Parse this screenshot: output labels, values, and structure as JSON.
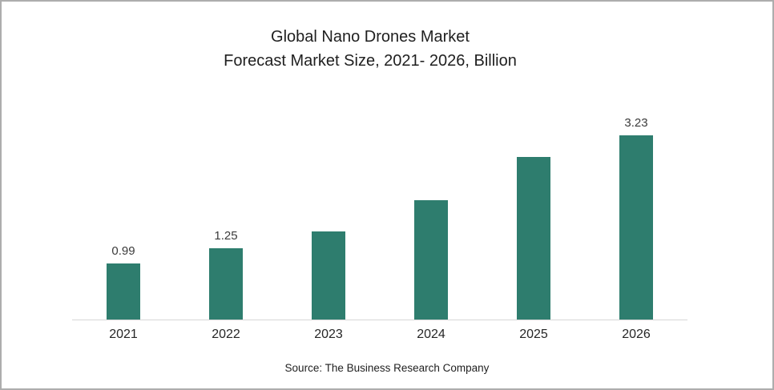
{
  "frame": {
    "background": "#ffffff",
    "border_color": "#adadad"
  },
  "title": {
    "line1": "Global Nano Drones Market",
    "line2": "Forecast Market Size, 2021- 2026, Billion"
  },
  "source": "Source: The Business Research Company",
  "chart_data": {
    "type": "bar",
    "title": "Global Nano Drones Market Forecast Market Size, 2021- 2026, Billion",
    "categories": [
      "2021",
      "2022",
      "2023",
      "2024",
      "2025",
      "2026"
    ],
    "values": [
      0.99,
      1.25,
      1.55,
      2.1,
      2.85,
      3.23
    ],
    "data_labels": [
      "0.99",
      "1.25",
      "",
      "",
      "",
      "3.23"
    ],
    "bar_color": "#2e7d6e",
    "axis_line_color": "#d6d6d6",
    "xlabel": "",
    "ylabel": "",
    "ylim": [
      0,
      3.3
    ],
    "grid": false,
    "legend": false
  }
}
